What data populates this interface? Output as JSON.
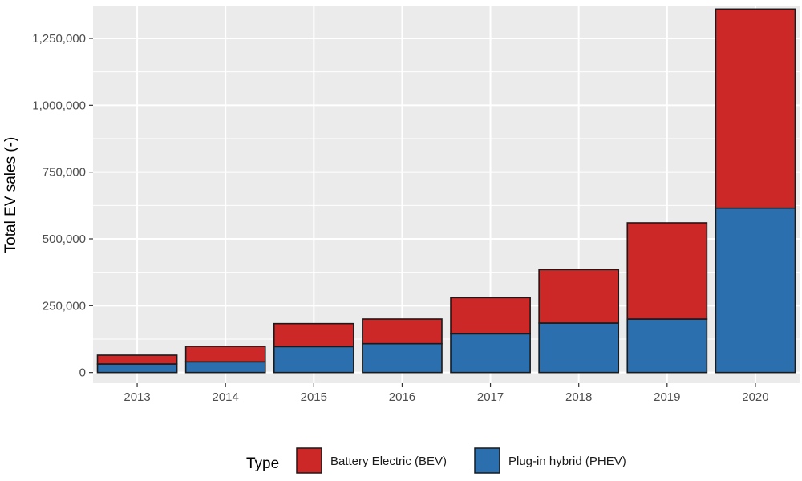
{
  "chart_data": {
    "type": "bar",
    "stacked": true,
    "categories": [
      "2013",
      "2014",
      "2015",
      "2016",
      "2017",
      "2018",
      "2019",
      "2020"
    ],
    "series": [
      {
        "name": "Plug-in hybrid (PHEV)",
        "color": "#2C6FAF",
        "values": [
          32000,
          40000,
          97000,
          108000,
          145000,
          185000,
          200000,
          615000
        ]
      },
      {
        "name": "Battery Electric (BEV)",
        "color": "#CC2828",
        "values": [
          33000,
          58000,
          86000,
          92000,
          135000,
          200000,
          360000,
          745000
        ]
      }
    ],
    "stack_order_bottom_to_top": [
      "Plug-in hybrid (PHEV)",
      "Battery Electric (BEV)"
    ],
    "ylabel": "Total EV sales (-)",
    "xlabel": "",
    "ylim": [
      -40000,
      1370000
    ],
    "yticks": [
      0,
      250000,
      500000,
      750000,
      1000000,
      1250000
    ],
    "ytick_labels": [
      "0",
      "250,000",
      "500,000",
      "750,000",
      "1,000,000",
      "1,250,000"
    ],
    "grid": true,
    "panel_color": "#EBEBEB",
    "legend": {
      "title": "Type",
      "position": "bottom",
      "entries": [
        {
          "label": "Battery Electric (BEV)",
          "color": "#CC2828"
        },
        {
          "label": "Plug-in hybrid (PHEV)",
          "color": "#2C6FAF"
        }
      ]
    }
  }
}
